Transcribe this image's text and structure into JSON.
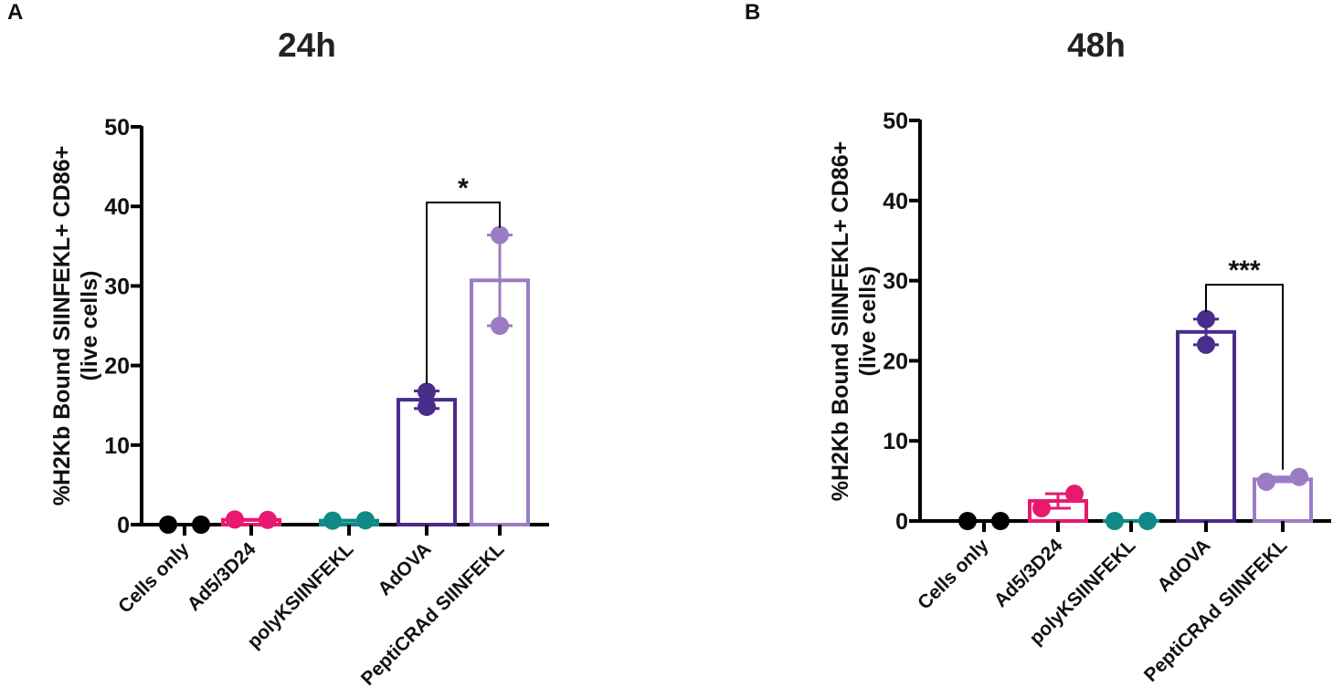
{
  "panels": [
    {
      "letter": "A",
      "title": "24h",
      "ylabel_line1": "%H2Kb Bound SIINFEKL+ CD86+",
      "ylabel_line2": "(live cells)"
    },
    {
      "letter": "B",
      "title": "48h",
      "ylabel_line1": "%H2Kb Bound SIINFEKL+ CD86+",
      "ylabel_line2": "(live cells)"
    }
  ],
  "chart_data": [
    {
      "type": "bar",
      "title": "24h",
      "ylabel": "%H2Kb Bound SIINFEKL+ CD86+ (live cells)",
      "xlabel": "",
      "ylim": [
        0,
        50
      ],
      "yticks": [
        "0",
        "10",
        "20",
        "30",
        "40",
        "50"
      ],
      "categories": [
        "Cells only",
        "Ad5/3D24",
        "polyKSIINFEKL",
        "AdOVA",
        "PeptiCRAd SIINFEKL"
      ],
      "colors": [
        "#000000",
        "#e8196e",
        "#0f8a86",
        "#4a2c8c",
        "#9b7cc4"
      ],
      "means": [
        0.0,
        0.6,
        0.5,
        15.7,
        30.7
      ],
      "errors": [
        0.0,
        0.05,
        0.05,
        1.1,
        5.7
      ],
      "points": [
        [
          0.0,
          0.0
        ],
        [
          0.65,
          0.6
        ],
        [
          0.5,
          0.55
        ],
        [
          16.7,
          14.8
        ],
        [
          36.4,
          25.0
        ]
      ],
      "significance": [
        {
          "from": 3,
          "to": 4,
          "label": "*",
          "y": 40.5
        }
      ]
    },
    {
      "type": "bar",
      "title": "48h",
      "ylabel": "%H2Kb Bound SIINFEKL+ CD86+ (live cells)",
      "xlabel": "",
      "ylim": [
        0,
        50
      ],
      "yticks": [
        "0",
        "10",
        "20",
        "30",
        "40",
        "50"
      ],
      "categories": [
        "Cells only",
        "Ad5/3D24",
        "polyKSIINFEKL",
        "AdOVA",
        "PeptiCRAd SIINFEKL"
      ],
      "colors": [
        "#000000",
        "#e8196e",
        "#0f8a86",
        "#4a2c8c",
        "#9b7cc4"
      ],
      "means": [
        0.0,
        2.5,
        0.0,
        23.6,
        5.2
      ],
      "errors": [
        0.0,
        0.9,
        0.0,
        1.6,
        0.3
      ],
      "points": [
        [
          0.0,
          0.0
        ],
        [
          1.6,
          3.4
        ],
        [
          0.0,
          0.0
        ],
        [
          25.2,
          22.0
        ],
        [
          4.9,
          5.5
        ]
      ],
      "significance": [
        {
          "from": 3,
          "to": 4,
          "label": "***",
          "y": 29.5
        }
      ]
    }
  ]
}
